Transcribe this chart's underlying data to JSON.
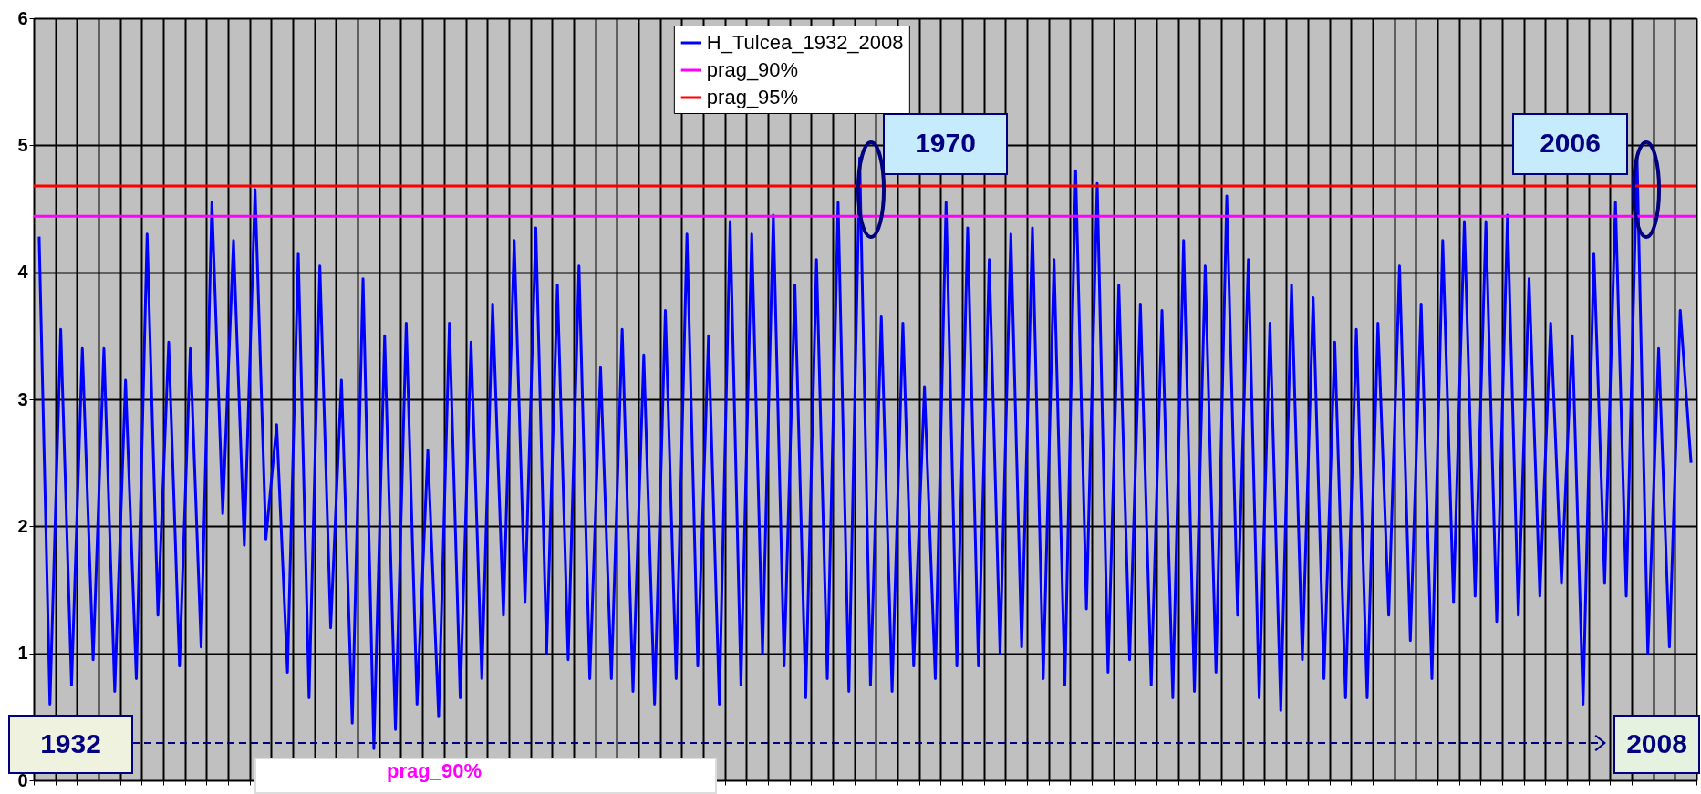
{
  "chart_data": {
    "type": "line",
    "categories": [
      null,
      null,
      null,
      null,
      null,
      null,
      null,
      null,
      null,
      null,
      null,
      null,
      null,
      null,
      null,
      null,
      null,
      null,
      null,
      null,
      null,
      null,
      null,
      null,
      null,
      null,
      null,
      null,
      null,
      null,
      null,
      null,
      null,
      null,
      null,
      null,
      null,
      null,
      null,
      null,
      null,
      null,
      null,
      null,
      null,
      null,
      null,
      null,
      null,
      null,
      null,
      null,
      null,
      null,
      null,
      null,
      null,
      null,
      null,
      null,
      null,
      null,
      null,
      null,
      null,
      null,
      null,
      null,
      null,
      null,
      null,
      null,
      null,
      null,
      null,
      null,
      null,
      null,
      null,
      null,
      null,
      null,
      null,
      null,
      null,
      null,
      null,
      null,
      null,
      null,
      null,
      null,
      null,
      null,
      null,
      null,
      null,
      null,
      null,
      null,
      null,
      null,
      null,
      null,
      null,
      null,
      null,
      null,
      null,
      null,
      null,
      null,
      null,
      null,
      null,
      null,
      null,
      null,
      null,
      null,
      null,
      null,
      null,
      null,
      null,
      null,
      null,
      null,
      null,
      null,
      null,
      null,
      null,
      null,
      null,
      null,
      null,
      null,
      null,
      null,
      null,
      null,
      null,
      null,
      null,
      null,
      null,
      null,
      null,
      null,
      null,
      null,
      null,
      null
    ],
    "series": [
      {
        "name": "H_Tulcea_1932_2008",
        "color": "#0000ff",
        "values": [
          4.28,
          0.6,
          3.55,
          0.75,
          3.4,
          0.95,
          3.4,
          0.7,
          3.15,
          0.8,
          4.3,
          1.3,
          3.45,
          0.9,
          3.4,
          1.05,
          4.55,
          2.1,
          4.25,
          1.85,
          4.65,
          1.9,
          2.8,
          0.85,
          4.15,
          0.65,
          4.05,
          1.2,
          3.15,
          0.45,
          3.95,
          0.25,
          3.5,
          0.4,
          3.6,
          0.6,
          2.6,
          0.5,
          3.6,
          0.65,
          3.45,
          0.8,
          3.75,
          1.3,
          4.25,
          1.4,
          4.35,
          1.0,
          3.9,
          0.95,
          4.05,
          0.8,
          3.25,
          0.8,
          3.55,
          0.7,
          3.35,
          0.6,
          3.7,
          0.8,
          4.3,
          0.9,
          3.5,
          0.6,
          4.4,
          0.75,
          4.3,
          1.0,
          4.45,
          0.9,
          3.9,
          0.65,
          4.1,
          0.8,
          4.55,
          0.7,
          4.9,
          0.75,
          3.65,
          0.7,
          3.6,
          0.9,
          3.1,
          0.8,
          4.55,
          0.9,
          4.35,
          0.9,
          4.1,
          1.0,
          4.3,
          1.05,
          4.35,
          0.8,
          4.1,
          0.75,
          4.8,
          1.35,
          4.7,
          0.85,
          3.9,
          0.95,
          3.75,
          0.75,
          3.7,
          0.65,
          4.25,
          0.7,
          4.05,
          0.85,
          4.6,
          1.3,
          4.1,
          0.65,
          3.6,
          0.55,
          3.9,
          0.95,
          3.8,
          0.8,
          3.45,
          0.65,
          3.55,
          0.65,
          3.6,
          1.3,
          4.05,
          1.1,
          3.75,
          0.8,
          4.25,
          1.4,
          4.4,
          1.45,
          4.4,
          1.25,
          4.45,
          1.3,
          3.95,
          1.45,
          3.6,
          1.55,
          3.5,
          0.6,
          4.15,
          1.55,
          4.55,
          1.45,
          4.9,
          1.0,
          3.4,
          1.05,
          3.7,
          2.5
        ]
      }
    ],
    "ref_lines": [
      {
        "axis": "y",
        "value": 4.44,
        "label": "prag_90%",
        "color": "#ff00ff"
      },
      {
        "axis": "y",
        "value": 4.68,
        "label": "prag_95%",
        "color": "#ff0000"
      }
    ],
    "annotations": [
      "1970",
      "2006",
      "1932",
      "2008",
      "prag_90%"
    ],
    "ylim": [
      0,
      6
    ],
    "yticks": [
      0,
      1,
      2,
      3,
      4,
      5,
      6
    ],
    "grid": true,
    "legend": "top",
    "tick_labels": "y",
    "line_style": "solid",
    "marker": "none"
  }
}
